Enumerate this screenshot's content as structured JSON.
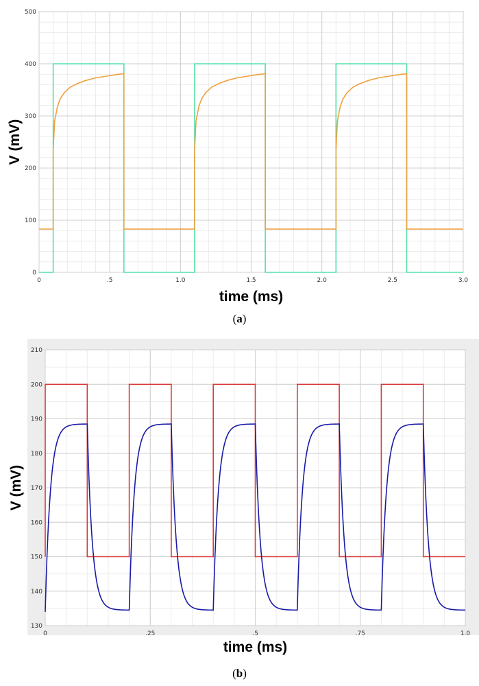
{
  "chart_data": [
    {
      "type": "line",
      "panel_label": "a",
      "xlabel": "time (ms)",
      "ylabel": "V (mV)",
      "xlim": [
        0,
        3.0
      ],
      "ylim": [
        0,
        500
      ],
      "xticks": [
        0,
        0.5,
        1.0,
        1.5,
        2.0,
        2.5,
        3.0
      ],
      "xtick_labels": [
        "0",
        ".5",
        "1.0",
        "1.5",
        "2.0",
        "2.5",
        "3.0"
      ],
      "yticks": [
        0,
        100,
        200,
        300,
        400,
        500
      ],
      "ytick_labels": [
        "0",
        "100",
        "200",
        "300",
        "400",
        "500"
      ],
      "grid": true,
      "series": [
        {
          "color": "#55e0a8",
          "kind": "square-wave",
          "low": 0,
          "high": 400,
          "rises": [
            0.1,
            1.1,
            2.1
          ],
          "falls": [
            0.6,
            1.6,
            2.6
          ]
        },
        {
          "color": "#f0a040",
          "kind": "rc-response",
          "baseline": 83,
          "jump_to": 235,
          "rises": [
            0.1,
            1.1,
            2.1
          ],
          "falls": [
            0.6,
            1.6,
            2.6
          ],
          "x": [
            0.1,
            0.11,
            0.13,
            0.15,
            0.18,
            0.22,
            0.27,
            0.33,
            0.4,
            0.47,
            0.54,
            0.6
          ],
          "y": [
            235,
            290,
            318,
            333,
            345,
            355,
            362,
            368,
            373,
            376,
            379,
            381
          ]
        }
      ]
    },
    {
      "type": "line",
      "panel_label": "b",
      "xlabel": "time (ms)",
      "ylabel": "V (mV)",
      "xlim": [
        0,
        1.0
      ],
      "ylim": [
        130,
        210
      ],
      "xticks": [
        0,
        0.25,
        0.5,
        0.75,
        1.0
      ],
      "xtick_labels": [
        "0",
        ".25",
        ".5",
        ".75",
        "1.0"
      ],
      "yticks": [
        130,
        140,
        150,
        160,
        170,
        180,
        190,
        200,
        210
      ],
      "ytick_labels": [
        "130",
        "140",
        "150",
        "160",
        "170",
        "180",
        "190",
        "200",
        "210"
      ],
      "grid": true,
      "series": [
        {
          "color": "#d83a3a",
          "kind": "square-wave",
          "low": 150,
          "high": 200,
          "rises": [
            0.0,
            0.2,
            0.4,
            0.6,
            0.8
          ],
          "falls": [
            0.1,
            0.3,
            0.5,
            0.7,
            0.9
          ]
        },
        {
          "color": "#1a1aa8",
          "kind": "rc-response",
          "high_level": 188.5,
          "low_level": 134.5,
          "start": 134,
          "tau_ms": 0.012,
          "rises": [
            0.0,
            0.2,
            0.4,
            0.6,
            0.8
          ],
          "falls": [
            0.1,
            0.3,
            0.5,
            0.7,
            0.9
          ]
        }
      ]
    }
  ]
}
